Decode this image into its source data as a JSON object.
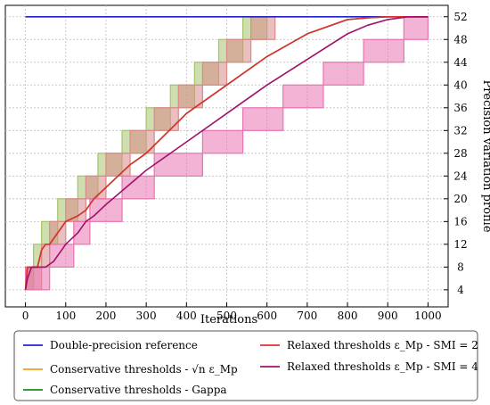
{
  "chart_data": {
    "type": "line",
    "xlabel": "Iterations",
    "ylabel": "Precision variation profile",
    "xlim": [
      -50,
      1050
    ],
    "ylim": [
      1,
      54
    ],
    "x_ticks": [
      0,
      100,
      200,
      300,
      400,
      500,
      600,
      700,
      800,
      900,
      1000
    ],
    "y_ticks": [
      4,
      8,
      12,
      16,
      20,
      24,
      28,
      32,
      36,
      40,
      44,
      48,
      52
    ],
    "y_axis_side": "right",
    "grid": true,
    "legend_position": "bottom",
    "series": [
      {
        "name": "Double-precision reference",
        "color": "#2222cc",
        "x": [
          0,
          1000
        ],
        "y": [
          52,
          52
        ]
      },
      {
        "name": "Conservative thresholds - √n ε_Mp",
        "color": "#f0a020",
        "x": [],
        "y": []
      },
      {
        "name": "Conservative thresholds - Gappa",
        "color": "#1f8a1f",
        "x": [
          0,
          5,
          10,
          30,
          40,
          50,
          60,
          80,
          100,
          130,
          150,
          170,
          200,
          230,
          260,
          300,
          400,
          500,
          600,
          700,
          800,
          850,
          900,
          950,
          1000
        ],
        "y": [
          4,
          8,
          8,
          8,
          11,
          12,
          12,
          14,
          16,
          17,
          18,
          20,
          22,
          24,
          26,
          28,
          35,
          40,
          45,
          49,
          51.5,
          51.8,
          52,
          52,
          52
        ]
      },
      {
        "name": "Relaxed thresholds ε_Mp - SMI = 2",
        "color": "#e03030",
        "x": [
          0,
          5,
          10,
          30,
          40,
          50,
          60,
          80,
          100,
          130,
          150,
          170,
          200,
          230,
          260,
          300,
          400,
          500,
          600,
          700,
          800,
          850,
          900,
          950,
          1000
        ],
        "y": [
          4,
          8,
          8,
          8,
          11,
          12,
          12,
          14,
          16,
          17,
          18,
          20,
          22,
          24,
          26,
          28,
          35,
          40,
          45,
          49,
          51.5,
          51.8,
          52,
          52,
          52
        ]
      },
      {
        "name": "Relaxed thresholds ε_Mp - SMI = 4",
        "color": "#a0106a",
        "x": [
          0,
          5,
          15,
          50,
          70,
          90,
          100,
          130,
          150,
          170,
          200,
          250,
          300,
          400,
          500,
          600,
          700,
          800,
          850,
          900,
          950,
          1000
        ],
        "y": [
          4,
          6,
          8,
          8,
          9,
          11,
          12,
          14,
          16,
          17,
          19,
          22,
          25,
          30,
          35,
          40,
          44.5,
          49,
          50.5,
          51.5,
          52,
          52
        ]
      }
    ],
    "bands": [
      {
        "color": "#a6c36b",
        "steps": [
          [
            0,
            4,
            8
          ],
          [
            20,
            8,
            12
          ],
          [
            40,
            12,
            16
          ],
          [
            80,
            16,
            20
          ],
          [
            130,
            20,
            24
          ],
          [
            180,
            24,
            28
          ],
          [
            240,
            28,
            32
          ],
          [
            300,
            32,
            36
          ],
          [
            360,
            36,
            40
          ],
          [
            420,
            40,
            44
          ],
          [
            480,
            44,
            48
          ],
          [
            540,
            48,
            52
          ],
          [
            600,
            52,
            52
          ]
        ],
        "end": 1000
      },
      {
        "color": "#d98a8a",
        "steps": [
          [
            0,
            4,
            8
          ],
          [
            40,
            8,
            12
          ],
          [
            60,
            12,
            16
          ],
          [
            100,
            16,
            20
          ],
          [
            150,
            20,
            24
          ],
          [
            200,
            24,
            28
          ],
          [
            260,
            28,
            32
          ],
          [
            320,
            32,
            36
          ],
          [
            380,
            36,
            40
          ],
          [
            440,
            40,
            44
          ],
          [
            500,
            44,
            48
          ],
          [
            560,
            48,
            52
          ],
          [
            620,
            52,
            52
          ]
        ],
        "end": 1000
      },
      {
        "color": "#e874b0",
        "steps": [
          [
            0,
            4,
            8
          ],
          [
            60,
            8,
            12
          ],
          [
            120,
            12,
            16
          ],
          [
            160,
            16,
            20
          ],
          [
            240,
            20,
            24
          ],
          [
            320,
            24,
            28
          ],
          [
            440,
            28,
            32
          ],
          [
            540,
            32,
            36
          ],
          [
            640,
            36,
            40
          ],
          [
            740,
            40,
            44
          ],
          [
            840,
            44,
            48
          ],
          [
            940,
            48,
            52
          ],
          [
            1000,
            52,
            52
          ]
        ],
        "end": 1000
      }
    ]
  }
}
